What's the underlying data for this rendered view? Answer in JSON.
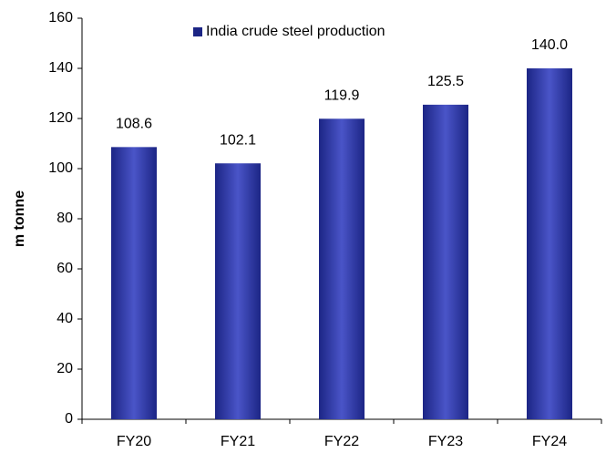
{
  "chart_data": {
    "type": "bar",
    "y_label": "m tonne",
    "categories": [
      "FY20",
      "FY21",
      "FY22",
      "FY23",
      "FY24"
    ],
    "series": [
      {
        "name": "India crude steel production",
        "color": "#1c2585",
        "values": [
          108.6,
          102.1,
          119.9,
          125.5,
          140.0
        ],
        "value_labels": [
          "108.6",
          "102.1",
          "119.9",
          "125.5",
          "140.0"
        ]
      }
    ],
    "ylim": [
      0,
      160
    ],
    "yticks": [
      0,
      20,
      40,
      60,
      80,
      100,
      120,
      140,
      160
    ],
    "grid": false,
    "legend": "top"
  }
}
